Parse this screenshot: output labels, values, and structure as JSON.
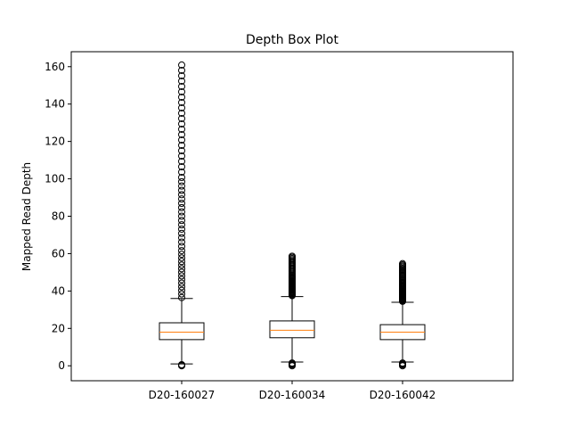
{
  "chart_data": {
    "type": "box",
    "title": "Depth Box Plot",
    "xlabel": "",
    "ylabel": "Mapped Read Depth",
    "ylim": [
      -8,
      168
    ],
    "yticks": [
      0,
      20,
      40,
      60,
      80,
      100,
      120,
      140,
      160
    ],
    "grid": false,
    "categories": [
      "D20-160027",
      "D20-160034",
      "D20-160042"
    ],
    "boxes": [
      {
        "name": "D20-160027",
        "whisker_low": 1,
        "q1": 14,
        "median": 18,
        "q3": 23,
        "whisker_high": 36,
        "outliers_high_range": [
          36.5,
          161
        ],
        "outliers_low_range": [
          0,
          0.8
        ]
      },
      {
        "name": "D20-160034",
        "whisker_low": 2,
        "q1": 15,
        "median": 19,
        "q3": 24,
        "whisker_high": 37,
        "outliers_high_range": [
          37.5,
          59
        ],
        "outliers_low_range": [
          0,
          1.5
        ]
      },
      {
        "name": "D20-160042",
        "whisker_low": 2,
        "q1": 14,
        "median": 18,
        "q3": 22,
        "whisker_high": 34,
        "outliers_high_range": [
          34.5,
          55
        ],
        "outliers_low_range": [
          0,
          1.5
        ]
      }
    ],
    "colors": {
      "box": "#000000",
      "median": "#ff7f0e",
      "outlier": "#000000"
    }
  }
}
